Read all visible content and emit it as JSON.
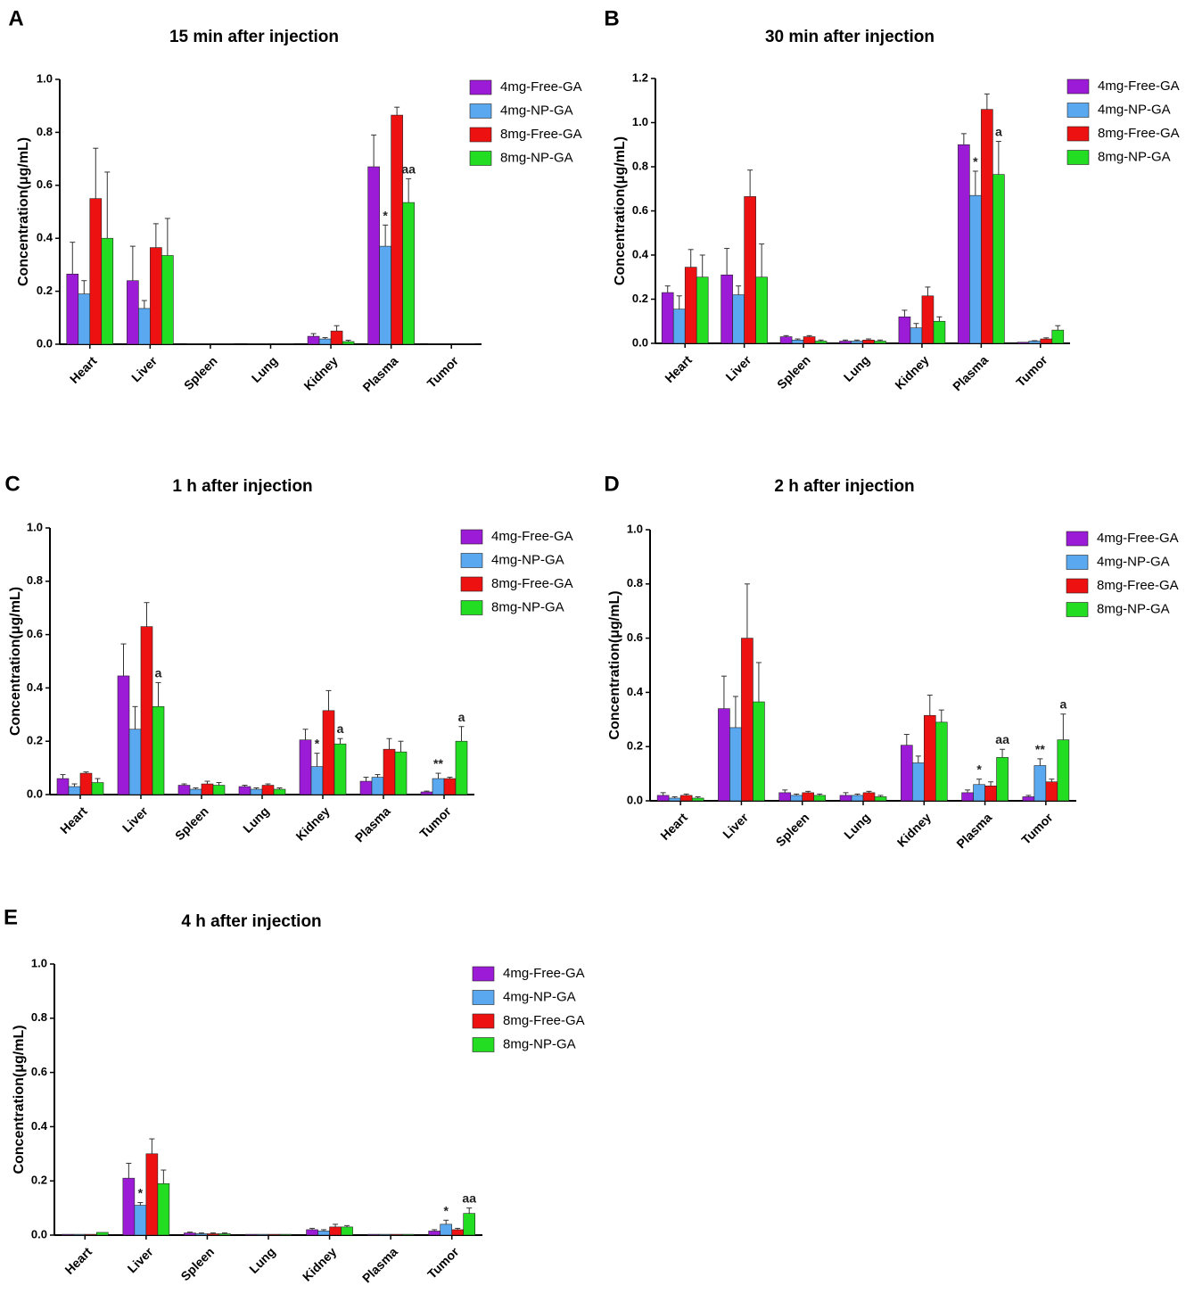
{
  "colors": {
    "free4": "#9B1BD6",
    "np4": "#5AA8F0",
    "free8": "#EE1111",
    "np8": "#22DD22"
  },
  "chart_data": [
    {
      "panel": "A",
      "type": "bar",
      "title": "15 min after injection",
      "ylabel": "Concentration(μg/mL)",
      "ylim": [
        0,
        1.0
      ],
      "yticks": [
        "0.0",
        "0.2",
        "0.4",
        "0.6",
        "0.8",
        "1.0"
      ],
      "categories": [
        "Heart",
        "Liver",
        "Spleen",
        "Lung",
        "Kidney",
        "Plasma",
        "Tumor"
      ],
      "series": [
        {
          "name": "4mg-Free-GA",
          "values": [
            0.265,
            0.24,
            0,
            0,
            0.03,
            0.67,
            0
          ],
          "errors": [
            0.12,
            0.13,
            0,
            0,
            0.01,
            0.12,
            0
          ]
        },
        {
          "name": "4mg-NP-GA",
          "values": [
            0.19,
            0.135,
            0,
            0,
            0.02,
            0.37,
            0
          ],
          "errors": [
            0.05,
            0.03,
            0,
            0,
            0.005,
            0.08,
            0
          ]
        },
        {
          "name": "8mg-Free-GA",
          "values": [
            0.55,
            0.365,
            0,
            0,
            0.05,
            0.865,
            0
          ],
          "errors": [
            0.19,
            0.09,
            0,
            0,
            0.02,
            0.03,
            0
          ]
        },
        {
          "name": "8mg-NP-GA",
          "values": [
            0.4,
            0.335,
            0,
            0,
            0.01,
            0.535,
            0
          ],
          "errors": [
            0.25,
            0.14,
            0,
            0,
            0.005,
            0.09,
            0
          ]
        }
      ],
      "annotations": [
        {
          "text": "*",
          "category": "Plasma",
          "series": "4mg-NP-GA"
        },
        {
          "text": "aa",
          "category": "Plasma",
          "series": "8mg-NP-GA"
        }
      ]
    },
    {
      "panel": "B",
      "type": "bar",
      "title": "30 min after injection",
      "ylabel": "Concentration(μg/mL)",
      "ylim": [
        0,
        1.2
      ],
      "yticks": [
        "0.0",
        "0.2",
        "0.4",
        "0.6",
        "0.8",
        "1.0",
        "1.2"
      ],
      "categories": [
        "Heart",
        "Liver",
        "Spleen",
        "Lung",
        "Kidney",
        "Plasma",
        "Tumor"
      ],
      "series": [
        {
          "name": "4mg-Free-GA",
          "values": [
            0.23,
            0.31,
            0.03,
            0.01,
            0.12,
            0.9,
            0.005
          ],
          "errors": [
            0.03,
            0.12,
            0.005,
            0.005,
            0.03,
            0.05,
            0
          ]
        },
        {
          "name": "4mg-NP-GA",
          "values": [
            0.155,
            0.22,
            0.015,
            0.01,
            0.07,
            0.67,
            0.01
          ],
          "errors": [
            0.06,
            0.04,
            0.005,
            0.005,
            0.02,
            0.11,
            0.002
          ]
        },
        {
          "name": "8mg-Free-GA",
          "values": [
            0.345,
            0.665,
            0.03,
            0.015,
            0.215,
            1.06,
            0.02
          ],
          "errors": [
            0.08,
            0.12,
            0.005,
            0.005,
            0.04,
            0.07,
            0.005
          ]
        },
        {
          "name": "8mg-NP-GA",
          "values": [
            0.3,
            0.3,
            0.01,
            0.01,
            0.1,
            0.765,
            0.06
          ],
          "errors": [
            0.1,
            0.15,
            0.005,
            0.005,
            0.02,
            0.15,
            0.02
          ]
        }
      ],
      "annotations": [
        {
          "text": "*",
          "category": "Plasma",
          "series": "4mg-NP-GA"
        },
        {
          "text": "a",
          "category": "Plasma",
          "series": "8mg-NP-GA"
        }
      ]
    },
    {
      "panel": "C",
      "type": "bar",
      "title": "1 h after injection",
      "ylabel": "Concentration(μg/mL)",
      "ylim": [
        0,
        1.0
      ],
      "yticks": [
        "0.0",
        "0.2",
        "0.4",
        "0.6",
        "0.8",
        "1.0"
      ],
      "categories": [
        "Heart",
        "Liver",
        "Spleen",
        "Lung",
        "Kidney",
        "Plasma",
        "Tumor"
      ],
      "series": [
        {
          "name": "4mg-Free-GA",
          "values": [
            0.06,
            0.445,
            0.035,
            0.03,
            0.205,
            0.05,
            0.01
          ],
          "errors": [
            0.015,
            0.12,
            0.005,
            0.005,
            0.04,
            0.015,
            0.003
          ]
        },
        {
          "name": "4mg-NP-GA",
          "values": [
            0.03,
            0.245,
            0.02,
            0.02,
            0.105,
            0.065,
            0.06
          ],
          "errors": [
            0.01,
            0.085,
            0.005,
            0.005,
            0.05,
            0.01,
            0.02
          ]
        },
        {
          "name": "8mg-Free-GA",
          "values": [
            0.08,
            0.63,
            0.04,
            0.035,
            0.315,
            0.17,
            0.06
          ],
          "errors": [
            0.005,
            0.09,
            0.01,
            0.005,
            0.075,
            0.04,
            0.005
          ]
        },
        {
          "name": "8mg-NP-GA",
          "values": [
            0.045,
            0.33,
            0.035,
            0.02,
            0.19,
            0.16,
            0.2
          ],
          "errors": [
            0.015,
            0.09,
            0.01,
            0.005,
            0.02,
            0.04,
            0.055
          ]
        }
      ],
      "annotations": [
        {
          "text": "a",
          "category": "Liver",
          "series": "8mg-NP-GA"
        },
        {
          "text": "*",
          "category": "Kidney",
          "series": "4mg-NP-GA"
        },
        {
          "text": "a",
          "category": "Kidney",
          "series": "8mg-NP-GA"
        },
        {
          "text": "**",
          "category": "Tumor",
          "series": "4mg-NP-GA"
        },
        {
          "text": "a",
          "category": "Tumor",
          "series": "8mg-NP-GA"
        }
      ]
    },
    {
      "panel": "D",
      "type": "bar",
      "title": "2 h after injection",
      "ylabel": "Concentration(μg/mL)",
      "ylim": [
        0,
        1.0
      ],
      "yticks": [
        "0.0",
        "0.2",
        "0.4",
        "0.6",
        "0.8",
        "1.0"
      ],
      "categories": [
        "Heart",
        "Liver",
        "Spleen",
        "Lung",
        "Kidney",
        "Plasma",
        "Tumor"
      ],
      "series": [
        {
          "name": "4mg-Free-GA",
          "values": [
            0.02,
            0.34,
            0.03,
            0.02,
            0.205,
            0.03,
            0.015
          ],
          "errors": [
            0.01,
            0.12,
            0.01,
            0.01,
            0.04,
            0.01,
            0.005
          ]
        },
        {
          "name": "4mg-NP-GA",
          "values": [
            0.01,
            0.27,
            0.02,
            0.02,
            0.14,
            0.06,
            0.13
          ],
          "errors": [
            0.005,
            0.115,
            0.005,
            0.005,
            0.025,
            0.02,
            0.025
          ]
        },
        {
          "name": "8mg-Free-GA",
          "values": [
            0.02,
            0.6,
            0.03,
            0.03,
            0.315,
            0.055,
            0.07
          ],
          "errors": [
            0.005,
            0.2,
            0.005,
            0.005,
            0.075,
            0.015,
            0.01
          ]
        },
        {
          "name": "8mg-NP-GA",
          "values": [
            0.01,
            0.365,
            0.02,
            0.015,
            0.29,
            0.16,
            0.225
          ],
          "errors": [
            0.005,
            0.145,
            0.005,
            0.005,
            0.045,
            0.03,
            0.095
          ]
        }
      ],
      "annotations": [
        {
          "text": "*",
          "category": "Plasma",
          "series": "4mg-NP-GA"
        },
        {
          "text": "aa",
          "category": "Plasma",
          "series": "8mg-NP-GA"
        },
        {
          "text": "**",
          "category": "Tumor",
          "series": "4mg-NP-GA"
        },
        {
          "text": "a",
          "category": "Tumor",
          "series": "8mg-NP-GA"
        }
      ]
    },
    {
      "panel": "E",
      "type": "bar",
      "title": "4 h after injection",
      "ylabel": "Concentration(μg/mL)",
      "ylim": [
        0,
        1.0
      ],
      "yticks": [
        "0.0",
        "0.2",
        "0.4",
        "0.6",
        "0.8",
        "1.0"
      ],
      "categories": [
        "Heart",
        "Liver",
        "Spleen",
        "Lung",
        "Kidney",
        "Plasma",
        "Tumor"
      ],
      "series": [
        {
          "name": "4mg-Free-GA",
          "values": [
            0.003,
            0.21,
            0.008,
            0.003,
            0.02,
            0.003,
            0.015
          ],
          "errors": [
            0,
            0.055,
            0.003,
            0,
            0.005,
            0,
            0.005
          ]
        },
        {
          "name": "4mg-NP-GA",
          "values": [
            0.003,
            0.11,
            0.005,
            0.003,
            0.015,
            0.003,
            0.04
          ],
          "errors": [
            0,
            0.01,
            0.003,
            0,
            0.005,
            0,
            0.015
          ]
        },
        {
          "name": "8mg-Free-GA",
          "values": [
            0.003,
            0.3,
            0.005,
            0.003,
            0.03,
            0.003,
            0.02
          ],
          "errors": [
            0,
            0.055,
            0.003,
            0,
            0.01,
            0,
            0.005
          ]
        },
        {
          "name": "8mg-NP-GA",
          "values": [
            0.01,
            0.19,
            0.005,
            0.003,
            0.03,
            0.003,
            0.08
          ],
          "errors": [
            0,
            0.05,
            0.003,
            0,
            0.005,
            0,
            0.02
          ]
        }
      ],
      "annotations": [
        {
          "text": "*",
          "category": "Liver",
          "series": "4mg-NP-GA"
        },
        {
          "text": "*",
          "category": "Tumor",
          "series": "4mg-NP-GA"
        },
        {
          "text": "aa",
          "category": "Tumor",
          "series": "8mg-NP-GA"
        }
      ]
    }
  ]
}
